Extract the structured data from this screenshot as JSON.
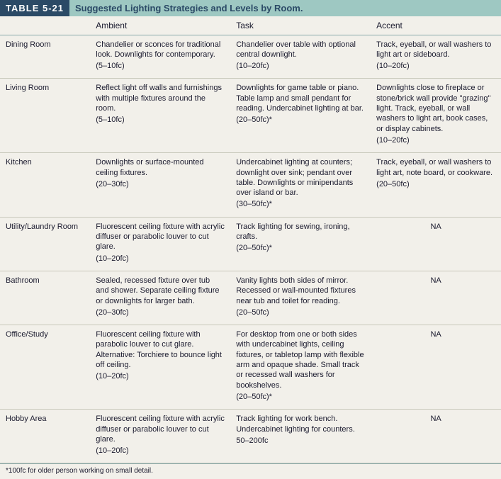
{
  "table_label": "TABLE 5-21",
  "table_title": "Suggested Lighting Strategies and Levels by Room.",
  "columns": [
    "",
    "Ambient",
    "Task",
    "Accent"
  ],
  "rows": [
    {
      "room": "Dining Room",
      "ambient": "Chandelier or sconces for traditional look.\nDownlights for contemporary.",
      "ambient_fc": "(5–10fc)",
      "task": "Chandelier over table with optional central downlight.",
      "task_fc": "(10–20fc)",
      "accent": "Track, eyeball, or wall washers to light art or sideboard.",
      "accent_fc": "(10–20fc)",
      "accent_na": false
    },
    {
      "room": "Living Room",
      "ambient": "Reflect light off walls and furnishings with multiple fixtures around the room.",
      "ambient_fc": "(5–10fc)",
      "task": "Downlights for game table or piano. Table lamp and small pendant for reading. Undercabinet lighting at bar.",
      "task_fc": "(20–50fc)*",
      "accent": "Downlights close to fireplace or stone/brick wall provide \"grazing\" light. Track, eyeball, or wall washers to light art, book cases, or display cabinets.",
      "accent_fc": "(10–20fc)",
      "accent_na": false
    },
    {
      "room": "Kitchen",
      "ambient": "Downlights or surface-mounted ceiling fixtures.",
      "ambient_fc": "(20–30fc)",
      "task": "Undercabinet lighting at counters; downlight over sink; pendant over table. Downlights or minipendants over island or bar.",
      "task_fc": "(30–50fc)*",
      "accent": "Track, eyeball, or wall washers to light art, note board, or cookware.",
      "accent_fc": "(20–50fc)",
      "accent_na": false
    },
    {
      "room": "Utility/Laundry Room",
      "ambient": "Fluorescent ceiling fixture with acrylic diffuser or parabolic louver to cut glare.",
      "ambient_fc": "(10–20fc)",
      "task": "Track lighting for sewing, ironing, crafts.",
      "task_fc": "(20–50fc)*",
      "accent": "",
      "accent_fc": "NA",
      "accent_na": true
    },
    {
      "room": "Bathroom",
      "ambient": "Sealed, recessed fixture over tub and shower. Separate ceiling fixture or downlights for larger bath.",
      "ambient_fc": "(20–30fc)",
      "task": "Vanity lights both sides of mirror. Recessed or wall-mounted fixtures near tub and toilet for reading.",
      "task_fc": "(20–50fc)",
      "accent": "",
      "accent_fc": "NA",
      "accent_na": true
    },
    {
      "room": "Office/Study",
      "ambient": "Fluorescent ceiling fixture with parabolic louver to cut glare. Alternative: Torchiere to bounce light off ceiling.",
      "ambient_fc": "(10–20fc)",
      "task": "For desktop from one or both sides with undercabinet lights, ceiling fixtures, or tabletop lamp with flexible arm and opaque shade. Small track or recessed wall washers for bookshelves.",
      "task_fc": "(20–50fc)*",
      "accent": "",
      "accent_fc": "NA",
      "accent_na": true
    },
    {
      "room": "Hobby Area",
      "ambient": "Fluorescent ceiling fixture with acrylic diffuser or parabolic louver to cut glare.",
      "ambient_fc": "(10–20fc)",
      "task": "Track lighting for work bench. Undercabinet lighting for counters.",
      "task_fc": "50–200fc",
      "accent": "",
      "accent_fc": "NA",
      "accent_na": true
    }
  ],
  "footnote": "*100fc for older person working on small detail.",
  "colors": {
    "header_label_bg": "#2b4a66",
    "header_title_bg": "#9ec8c2",
    "body_bg": "#f2f0ea",
    "rule": "#c8c8bb"
  }
}
